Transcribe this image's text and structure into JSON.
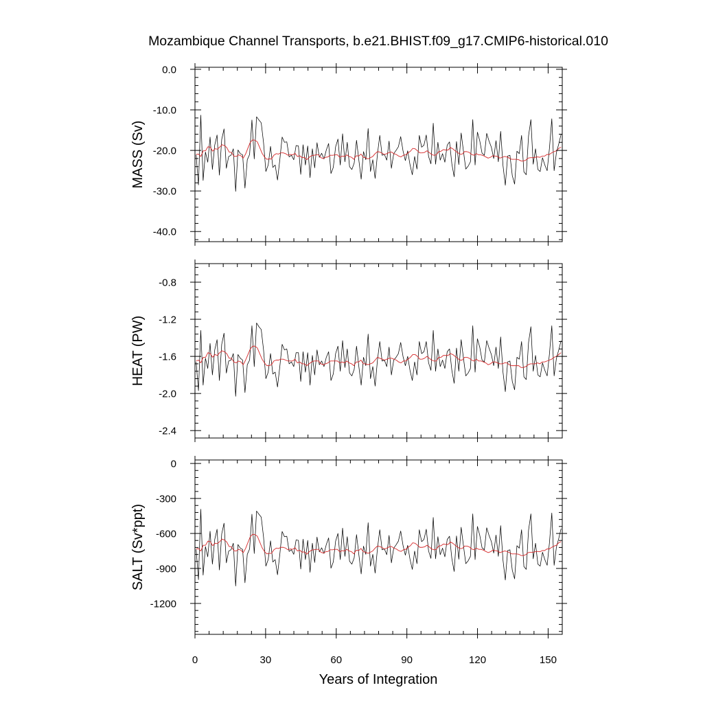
{
  "figure": {
    "title": "Mozambique Channel Transports, b.e21.BHIST.f09_g17.CMIP6-historical.010",
    "xlabel": "Years of Integration"
  },
  "colors": {
    "raw_series": "#000000",
    "smoothed_series": "#d62728",
    "axes": "#000000",
    "background": "#ffffff"
  },
  "chart_data": [
    {
      "type": "line",
      "panel": "mass",
      "title": "",
      "ylabel": "MASS (Sv)",
      "xlabel": "",
      "xlim": [
        0,
        156
      ],
      "ylim": [
        -42.5,
        0.5
      ],
      "xticks": [
        0,
        30,
        60,
        90,
        120,
        150
      ],
      "yticks": [
        0.0,
        -10.0,
        -20.0,
        -30.0,
        -40.0
      ],
      "ytick_labels": [
        "0.0",
        "-10.0",
        "-20.0",
        "-30.0",
        "-40.0"
      ],
      "grid": false,
      "series": [
        {
          "values": [
            -21.1,
            -28.5,
            -11.3,
            -27.4,
            -20.4,
            -22.9,
            -16.7,
            -24.7,
            -18.7,
            -16.2,
            -26.1,
            -17.3,
            -14.7,
            -24.4,
            -21.5,
            -21.2,
            -19.6,
            -30.1,
            -19.9,
            -20.8,
            -21.1,
            -29.3,
            -22.3,
            -21.0,
            -12.5,
            -22.1,
            -11.7,
            -12.5,
            -13.2,
            -18.1,
            -25.2,
            -23.6,
            -19.0,
            -24.2,
            -23.6,
            -27.3,
            -22.3,
            -16.7,
            -18.0,
            -17.9,
            -21.6,
            -21.2,
            -22.3,
            -18.8,
            -18.9,
            -25.9,
            -18.6,
            -23.6,
            -18.9,
            -26.7,
            -19.6,
            -24.3,
            -18.1,
            -21.7,
            -20.7,
            -22.1,
            -19.9,
            -18.3,
            -25.7,
            -24.2,
            -19.1,
            -17.2,
            -23.6,
            -15.9,
            -22.8,
            -18.0,
            -24.0,
            -24.7,
            -23.1,
            -17.5,
            -22.4,
            -27.1,
            -20.3,
            -22.3,
            -14.6,
            -25.2,
            -22.3,
            -26.9,
            -20.9,
            -16.3,
            -21.2,
            -21.0,
            -22.4,
            -17.7,
            -24.4,
            -20.8,
            -20.0,
            -19.1,
            -16.6,
            -20.1,
            -22.5,
            -20.1,
            -23.5,
            -26.0,
            -21.5,
            -24.6,
            -16.3,
            -19.2,
            -18.7,
            -16.2,
            -21.5,
            -23.3,
            -13.3,
            -23.4,
            -18.0,
            -22.4,
            -20.8,
            -22.9,
            -18.7,
            -17.9,
            -23.3,
            -26.5,
            -17.8,
            -23.5,
            -15.7,
            -20.2,
            -24.6,
            -23.9,
            -22.8,
            -12.4,
            -23.6,
            -15.5,
            -17.6,
            -20.7,
            -21.2,
            -15.8,
            -17.7,
            -19.2,
            -22.0,
            -17.6,
            -22.8,
            -15.3,
            -23.7,
            -28.6,
            -21.4,
            -21.2,
            -26.2,
            -28.3,
            -20.2,
            -20.8,
            -16.3,
            -25.3,
            -26.0,
            -16.4,
            -12.4,
            -23.4,
            -19.6,
            -24.7,
            -25.2,
            -21.8,
            -23.6,
            -25.0,
            -19.4,
            -12.2,
            -25.0,
            -20.5,
            -18.4,
            -16.0
          ]
        },
        {
          "values": [
            -21.0,
            -20.9,
            -21.5,
            -20.1,
            -20.1,
            -19.1,
            -19.2,
            -20.2,
            -19.6,
            -19.7,
            -19.2,
            -18.6,
            -18.8,
            -19.3,
            -20.4,
            -20.5,
            -21.4,
            -21.5,
            -21.1,
            -21.3,
            -21.9,
            -20.9,
            -19.4,
            -18.0,
            -17.4,
            -17.5,
            -17.9,
            -19.3,
            -20.7,
            -21.6,
            -22.2,
            -22.1,
            -22.1,
            -21.2,
            -20.8,
            -20.9,
            -20.6,
            -20.6,
            -20.8,
            -21.2,
            -21.0,
            -21.1,
            -20.7,
            -21.5,
            -21.3,
            -21.8,
            -21.7,
            -22.3,
            -21.7,
            -21.3,
            -21.2,
            -21.1,
            -21.1,
            -21.8,
            -22.0,
            -21.7,
            -21.6,
            -21.2,
            -21.2,
            -21.1,
            -21.1,
            -21.7,
            -21.4,
            -21.5,
            -21.1,
            -21.5,
            -21.7,
            -22.2,
            -21.3,
            -21.4,
            -20.9,
            -21.7,
            -21.8,
            -22.1,
            -21.8,
            -21.5,
            -20.8,
            -20.3,
            -20.4,
            -20.7,
            -21.0,
            -20.8,
            -20.5,
            -20.4,
            -20.8,
            -21.0,
            -21.4,
            -21.6,
            -21.2,
            -21.1,
            -20.6,
            -20.2,
            -19.5,
            -19.6,
            -20.1,
            -20.6,
            -20.6,
            -20.5,
            -20.1,
            -20.5,
            -21.0,
            -21.2,
            -21.1,
            -20.3,
            -20.2,
            -19.8,
            -19.9,
            -19.9,
            -19.3,
            -19.6,
            -20.1,
            -20.5,
            -20.9,
            -20.9,
            -20.3,
            -20.3,
            -20.5,
            -21.0,
            -21.2,
            -20.8,
            -21.1,
            -21.1,
            -21.3,
            -21.6,
            -21.9,
            -21.7,
            -21.3,
            -21.4,
            -21.5,
            -21.9,
            -21.7,
            -21.5,
            -21.6,
            -21.9,
            -22.2,
            -22.2,
            -22.2,
            -22.3,
            -22.6,
            -22.6,
            -22.4,
            -21.9,
            -21.8,
            -21.8,
            -21.7,
            -21.6,
            -21.7,
            -21.4,
            -21.4,
            -21.0,
            -21.0,
            -20.6,
            -20.3,
            -20.1,
            -19.5,
            -19.2
          ]
        }
      ]
    },
    {
      "type": "line",
      "panel": "heat",
      "title": "",
      "ylabel": "HEAT (PW)",
      "xlabel": "",
      "xlim": [
        0,
        156
      ],
      "ylim": [
        -2.48,
        -0.6
      ],
      "xticks": [
        0,
        30,
        60,
        90,
        120,
        150
      ],
      "yticks": [
        -0.8,
        -1.2,
        -1.6,
        -2.0,
        -2.4
      ],
      "ytick_labels": [
        "-0.8",
        "-1.2",
        "-1.6",
        "-2.0",
        "-2.4"
      ],
      "grid": false,
      "series": [
        {
          "values": [
            -1.66,
            -1.97,
            -1.32,
            -1.91,
            -1.62,
            -1.73,
            -1.46,
            -1.8,
            -1.53,
            -1.42,
            -1.86,
            -1.47,
            -1.35,
            -1.78,
            -1.65,
            -1.64,
            -1.57,
            -2.03,
            -1.58,
            -1.62,
            -1.64,
            -1.99,
            -1.69,
            -1.64,
            -1.27,
            -1.71,
            -1.24,
            -1.28,
            -1.31,
            -1.53,
            -1.84,
            -1.77,
            -1.57,
            -1.79,
            -1.77,
            -1.93,
            -1.71,
            -1.47,
            -1.53,
            -1.52,
            -1.68,
            -1.66,
            -1.71,
            -1.56,
            -1.56,
            -1.87,
            -1.55,
            -1.77,
            -1.56,
            -1.91,
            -1.59,
            -1.8,
            -1.53,
            -1.69,
            -1.65,
            -1.71,
            -1.61,
            -1.55,
            -1.86,
            -1.79,
            -1.57,
            -1.49,
            -1.76,
            -1.43,
            -1.72,
            -1.52,
            -1.78,
            -1.81,
            -1.74,
            -1.49,
            -1.71,
            -1.91,
            -1.61,
            -1.7,
            -1.36,
            -1.84,
            -1.71,
            -1.92,
            -1.64,
            -1.44,
            -1.65,
            -1.64,
            -1.71,
            -1.5,
            -1.8,
            -1.64,
            -1.61,
            -1.57,
            -1.45,
            -1.6,
            -1.7,
            -1.6,
            -1.75,
            -1.86,
            -1.66,
            -1.8,
            -1.44,
            -1.57,
            -1.55,
            -1.44,
            -1.67,
            -1.75,
            -1.32,
            -1.76,
            -1.52,
            -1.71,
            -1.64,
            -1.73,
            -1.55,
            -1.52,
            -1.75,
            -1.89,
            -1.51,
            -1.76,
            -1.42,
            -1.62,
            -1.81,
            -1.78,
            -1.73,
            -1.27,
            -1.77,
            -1.41,
            -1.5,
            -1.64,
            -1.66,
            -1.43,
            -1.51,
            -1.58,
            -1.7,
            -1.5,
            -1.73,
            -1.39,
            -1.77,
            -1.98,
            -1.66,
            -1.65,
            -1.87,
            -1.96,
            -1.61,
            -1.63,
            -1.44,
            -1.82,
            -1.85,
            -1.45,
            -1.28,
            -1.76,
            -1.59,
            -1.8,
            -1.82,
            -1.67,
            -1.75,
            -1.81,
            -1.57,
            -1.27,
            -1.81,
            -1.62,
            -1.53,
            -1.43
          ]
        },
        {
          "values": [
            -1.65,
            -1.64,
            -1.67,
            -1.61,
            -1.61,
            -1.56,
            -1.57,
            -1.61,
            -1.58,
            -1.59,
            -1.56,
            -1.54,
            -1.55,
            -1.57,
            -1.62,
            -1.62,
            -1.66,
            -1.67,
            -1.65,
            -1.66,
            -1.69,
            -1.64,
            -1.58,
            -1.52,
            -1.49,
            -1.49,
            -1.51,
            -1.57,
            -1.63,
            -1.67,
            -1.7,
            -1.7,
            -1.69,
            -1.65,
            -1.64,
            -1.64,
            -1.63,
            -1.63,
            -1.64,
            -1.65,
            -1.65,
            -1.65,
            -1.63,
            -1.67,
            -1.66,
            -1.68,
            -1.68,
            -1.7,
            -1.68,
            -1.66,
            -1.65,
            -1.65,
            -1.65,
            -1.68,
            -1.69,
            -1.68,
            -1.67,
            -1.65,
            -1.65,
            -1.65,
            -1.65,
            -1.67,
            -1.66,
            -1.67,
            -1.65,
            -1.67,
            -1.68,
            -1.7,
            -1.66,
            -1.66,
            -1.64,
            -1.68,
            -1.68,
            -1.69,
            -1.68,
            -1.67,
            -1.64,
            -1.61,
            -1.62,
            -1.63,
            -1.64,
            -1.63,
            -1.62,
            -1.62,
            -1.63,
            -1.64,
            -1.66,
            -1.67,
            -1.65,
            -1.65,
            -1.63,
            -1.61,
            -1.58,
            -1.58,
            -1.6,
            -1.63,
            -1.63,
            -1.62,
            -1.6,
            -1.62,
            -1.64,
            -1.65,
            -1.65,
            -1.61,
            -1.61,
            -1.59,
            -1.59,
            -1.59,
            -1.57,
            -1.58,
            -1.6,
            -1.62,
            -1.64,
            -1.64,
            -1.61,
            -1.61,
            -1.62,
            -1.64,
            -1.65,
            -1.63,
            -1.65,
            -1.65,
            -1.66,
            -1.67,
            -1.69,
            -1.68,
            -1.66,
            -1.66,
            -1.67,
            -1.68,
            -1.68,
            -1.67,
            -1.67,
            -1.69,
            -1.7,
            -1.7,
            -1.7,
            -1.7,
            -1.72,
            -1.72,
            -1.71,
            -1.69,
            -1.68,
            -1.68,
            -1.68,
            -1.67,
            -1.68,
            -1.66,
            -1.66,
            -1.65,
            -1.64,
            -1.63,
            -1.61,
            -1.6,
            -1.58,
            -1.56
          ]
        }
      ]
    },
    {
      "type": "line",
      "panel": "salt",
      "title": "",
      "ylabel": "SALT (Sv*ppt)",
      "xlabel": "",
      "xlim": [
        0,
        156
      ],
      "ylim": [
        -1465,
        30
      ],
      "xticks": [
        0,
        30,
        60,
        90,
        120,
        150
      ],
      "yticks": [
        0,
        -300,
        -600,
        -900,
        -1200
      ],
      "ytick_labels": [
        "0",
        "-300",
        "-600",
        "-900",
        "-1200"
      ],
      "grid": false,
      "series": [
        {
          "values": [
            -737,
            -996,
            -392,
            -957,
            -712,
            -800,
            -581,
            -863,
            -652,
            -564,
            -913,
            -604,
            -512,
            -852,
            -751,
            -740,
            -684,
            -1051,
            -695,
            -726,
            -737,
            -1023,
            -779,
            -733,
            -435,
            -772,
            -408,
            -435,
            -460,
            -631,
            -880,
            -824,
            -663,
            -845,
            -824,
            -954,
            -779,
            -583,
            -628,
            -624,
            -754,
            -740,
            -779,
            -656,
            -659,
            -905,
            -649,
            -824,
            -659,
            -933,
            -684,
            -849,
            -631,
            -758,
            -723,
            -772,
            -695,
            -638,
            -898,
            -845,
            -666,
            -600,
            -824,
            -554,
            -796,
            -628,
            -838,
            -863,
            -807,
            -610,
            -782,
            -947,
            -709,
            -779,
            -508,
            -880,
            -779,
            -940,
            -730,
            -568,
            -740,
            -733,
            -782,
            -617,
            -852,
            -726,
            -698,
            -666,
            -579,
            -702,
            -786,
            -702,
            -821,
            -908,
            -751,
            -859,
            -568,
            -670,
            -652,
            -564,
            -751,
            -814,
            -463,
            -817,
            -628,
            -782,
            -726,
            -800,
            -652,
            -624,
            -814,
            -926,
            -621,
            -821,
            -547,
            -705,
            -859,
            -835,
            -796,
            -432,
            -824,
            -540,
            -614,
            -723,
            -740,
            -551,
            -617,
            -670,
            -768,
            -614,
            -796,
            -533,
            -828,
            -999,
            -747,
            -740,
            -915,
            -989,
            -705,
            -726,
            -568,
            -884,
            -908,
            -572,
            -432,
            -817,
            -684,
            -863,
            -880,
            -761,
            -824,
            -873,
            -677,
            -425,
            -873,
            -716,
            -642,
            -558
          ]
        },
        {
          "values": [
            -733,
            -730,
            -751,
            -701,
            -701,
            -666,
            -670,
            -705,
            -684,
            -687,
            -670,
            -649,
            -656,
            -673,
            -712,
            -715,
            -747,
            -751,
            -736,
            -743,
            -765,
            -729,
            -677,
            -628,
            -607,
            -610,
            -624,
            -673,
            -722,
            -754,
            -775,
            -771,
            -771,
            -740,
            -726,
            -729,
            -719,
            -719,
            -726,
            -740,
            -733,
            -736,
            -722,
            -750,
            -743,
            -761,
            -757,
            -778,
            -757,
            -743,
            -740,
            -736,
            -736,
            -761,
            -768,
            -757,
            -754,
            -740,
            -740,
            -736,
            -736,
            -757,
            -747,
            -750,
            -736,
            -750,
            -757,
            -775,
            -743,
            -747,
            -729,
            -757,
            -761,
            -771,
            -761,
            -750,
            -726,
            -708,
            -712,
            -722,
            -733,
            -726,
            -715,
            -712,
            -726,
            -733,
            -747,
            -754,
            -740,
            -736,
            -719,
            -705,
            -680,
            -684,
            -701,
            -719,
            -719,
            -715,
            -701,
            -715,
            -733,
            -740,
            -736,
            -708,
            -705,
            -691,
            -694,
            -694,
            -673,
            -684,
            -701,
            -715,
            -729,
            -729,
            -708,
            -708,
            -715,
            -733,
            -740,
            -726,
            -736,
            -736,
            -743,
            -754,
            -764,
            -757,
            -743,
            -747,
            -750,
            -764,
            -757,
            -750,
            -754,
            -764,
            -775,
            -775,
            -775,
            -778,
            -789,
            -789,
            -782,
            -764,
            -761,
            -761,
            -757,
            -754,
            -757,
            -747,
            -747,
            -733,
            -733,
            -719,
            -708,
            -701,
            -680,
            -670
          ]
        }
      ]
    }
  ]
}
